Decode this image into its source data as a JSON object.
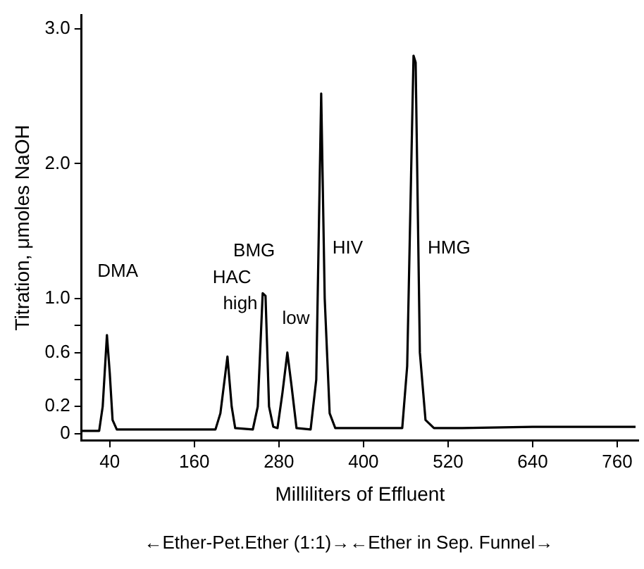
{
  "chart_data": {
    "type": "line",
    "xlabel": "Milliliters of Effluent",
    "ylabel": "Titration, μmoles NaOH",
    "series": [
      {
        "color": "#000000",
        "x": [
          0,
          25,
          30,
          36,
          40,
          44,
          50,
          190,
          197,
          207,
          213,
          218,
          243,
          250,
          257,
          261,
          266,
          272,
          278,
          285,
          292,
          298,
          305,
          325,
          333,
          340,
          345,
          352,
          360,
          455,
          462,
          471,
          474,
          480,
          488,
          500,
          540,
          640,
          786
        ],
        "values": [
          0.02,
          0.02,
          0.2,
          0.73,
          0.45,
          0.1,
          0.03,
          0.03,
          0.15,
          0.57,
          0.2,
          0.04,
          0.03,
          0.2,
          1.04,
          1.02,
          0.2,
          0.05,
          0.04,
          0.3,
          0.6,
          0.35,
          0.04,
          0.03,
          0.4,
          2.52,
          1.0,
          0.15,
          0.04,
          0.04,
          0.5,
          2.8,
          2.75,
          0.6,
          0.1,
          0.04,
          0.04,
          0.05,
          0.05
        ]
      }
    ],
    "xlim": [
      0,
      790
    ],
    "xticks": [
      40,
      160,
      280,
      400,
      520,
      640,
      760
    ],
    "ylim": [
      -0.05,
      3.1
    ],
    "yticks": [
      0,
      0.2,
      {
        "value": 0.4,
        "label": null
      },
      0.6,
      {
        "value": 0.8,
        "label": null
      },
      {
        "value": 1,
        "label": "1.0"
      },
      {
        "value": 2,
        "label": "2.0"
      },
      {
        "value": 3,
        "label": "3.0"
      }
    ],
    "grid": false,
    "legend": false,
    "marker": "none",
    "line_style": "solid",
    "annotations": [
      "DMA",
      "HAC",
      "BMG",
      "high",
      "low",
      "HIV",
      "HMG",
      "←Ether-Pet.Ether (1:1)→←Ether in Sep. Funnel→"
    ]
  }
}
